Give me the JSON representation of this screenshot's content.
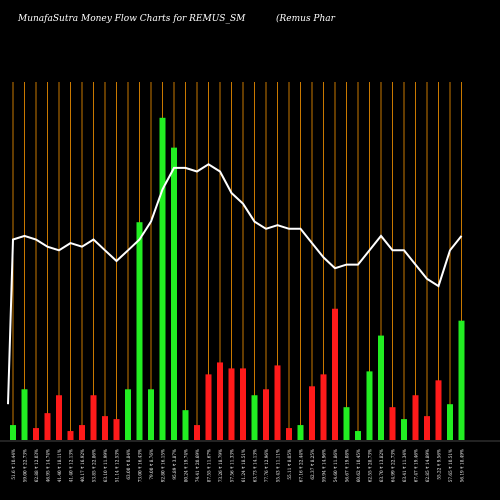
{
  "chart_data": {
    "type": "bar",
    "title": "MunafaSutra  Money Flow  Charts for REMUS_SM",
    "subtitle": "(Remus Phar",
    "colors": {
      "background": "#000000",
      "up": "#22ee22",
      "down": "#ff1a1a",
      "grid": "#c87800",
      "line": "#ffffff",
      "text": "#ffffff"
    },
    "bars": {
      "values": [
        5,
        17,
        4,
        9,
        15,
        3,
        5,
        15,
        8,
        7,
        17,
        73,
        17,
        108,
        98,
        10,
        5,
        22,
        26,
        24,
        24,
        15,
        17,
        25,
        4,
        5,
        18,
        22,
        44,
        11,
        3,
        23,
        35,
        11,
        7,
        15,
        8,
        20,
        12,
        40
      ],
      "direction": [
        "up",
        "up",
        "down",
        "down",
        "down",
        "down",
        "down",
        "down",
        "down",
        "down",
        "up",
        "up",
        "up",
        "up",
        "up",
        "up",
        "down",
        "down",
        "down",
        "down",
        "down",
        "up",
        "down",
        "down",
        "down",
        "up",
        "down",
        "down",
        "down",
        "up",
        "up",
        "up",
        "up",
        "down",
        "up",
        "down",
        "down",
        "down",
        "up",
        "up"
      ],
      "ymax": 120
    },
    "line": {
      "values": [
        56,
        57,
        56,
        54,
        53,
        55,
        54,
        56,
        53,
        50,
        53,
        56,
        61,
        70,
        76,
        76,
        75,
        77,
        75,
        69,
        66,
        61,
        59,
        60,
        59,
        59,
        55,
        51,
        48,
        49,
        49,
        53,
        57,
        53,
        53,
        49,
        45,
        43,
        53,
        57
      ],
      "start_value": 10,
      "ylim": [
        0,
        100
      ]
    },
    "xlabels": [
      "51.6 ₹ 10.44%",
      "59.00 ₹ 22.73%",
      "62.88 ₹ 12.03%",
      "46.95 ₹ 14.74%",
      "41.40 ₹ 18.11%",
      "41.40 ₹ 12.13%",
      "40.17 ₹ 16.92%",
      "53.85 ₹ 22.86%",
      "63.10 ₹ 11.99%",
      "51.14 ₹ 12.53%",
      "63.00 ₹ 0.84%",
      "73.00 ₹ 16.43%",
      "79.00 ₹ 8.76%",
      "92.80 ₹ 16.15%",
      "95.89 ₹ 3.87%",
      "80.24 ₹ 19.74%",
      "74.41 ₹ 20.69%",
      "87.55 ₹ 11.67%",
      "73.26 ₹ 18.79%",
      "57.56 ₹ 11.33%",
      "61.24 ₹ 18.51%",
      "63.73 ₹ 14.13%",
      "77.76 ₹ 12.96%",
      "55.43 ₹ 11.11%",
      "55.11 ₹ 8.05%",
      "67.16 ₹ 22.44%",
      "62.37 ₹ 8.25%",
      "59.94 ₹ 14.96%",
      "54.60 ₹ 11.86%",
      "56.67 ₹ 19.08%",
      "60.62 ₹ 10.45%",
      "62.55 ₹ 28.73%",
      "63.70 ₹ 13.82%",
      "64.99 ₹ 22.73%",
      "63.41 ₹ 11.34%",
      "67.47 ₹ 19.46%",
      "62.85 ₹ 14.89%",
      "55.22 ₹ 9.56%",
      "57.65 ₹ 10.51%",
      "56.19 ₹ 18.49%"
    ]
  }
}
